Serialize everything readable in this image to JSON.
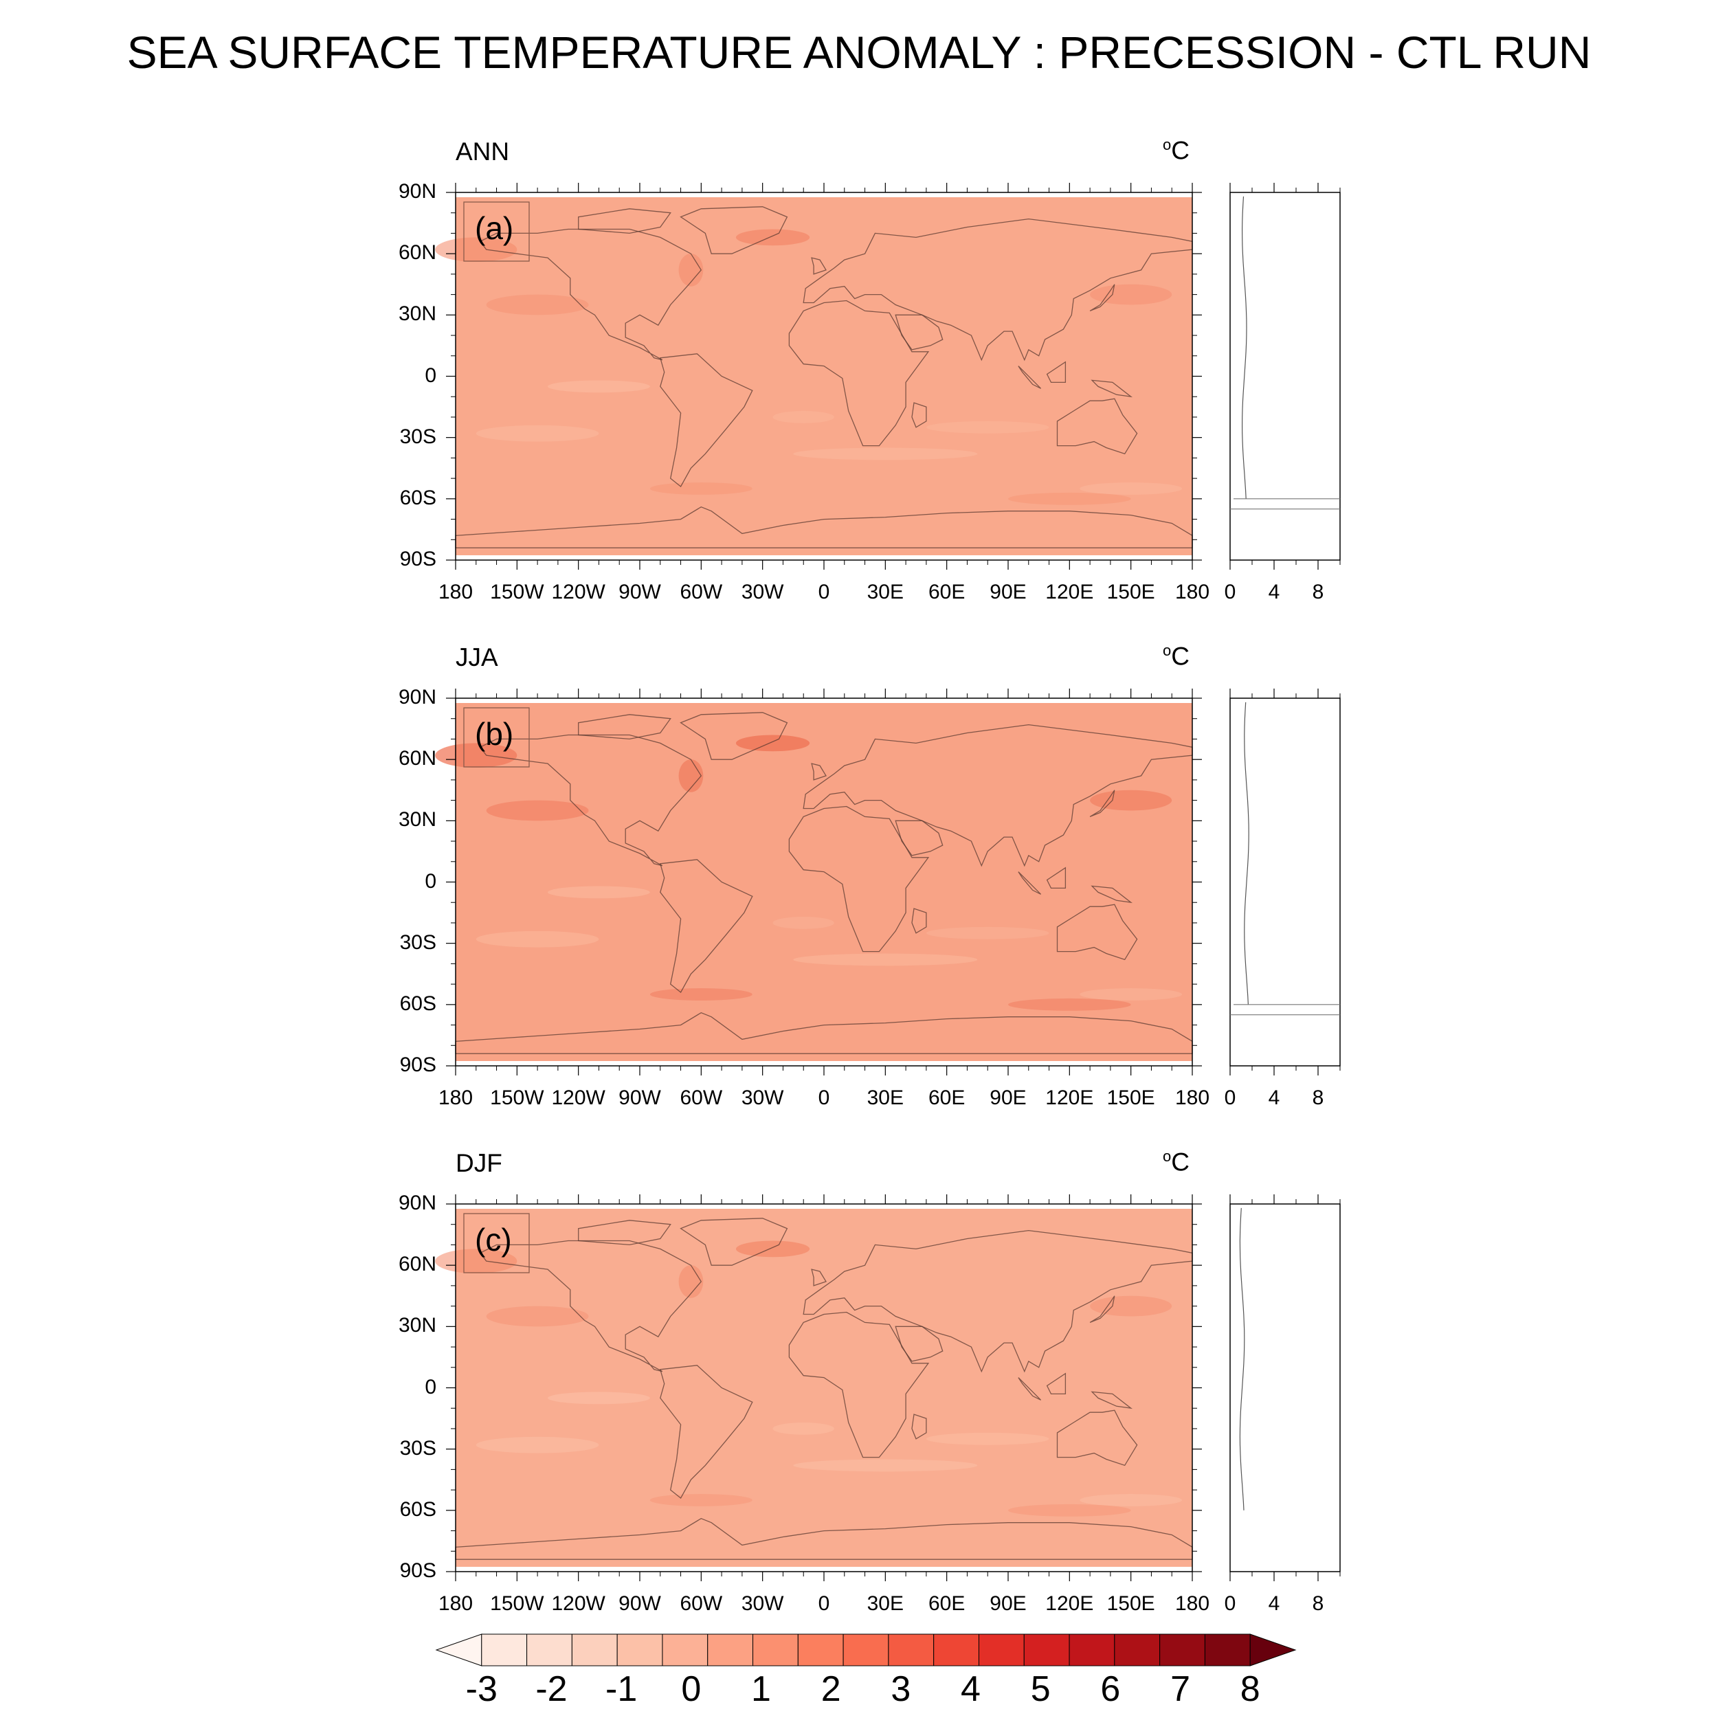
{
  "title": "SEA SURFACE TEMPERATURE ANOMALY : PRECESSION - CTL RUN",
  "unit": "°C",
  "unit_base": "o",
  "unit_letter": "C",
  "lat_ticks": [
    "90N",
    "60N",
    "30N",
    "0",
    "30S",
    "60S",
    "90S"
  ],
  "lon_ticks": [
    "180",
    "150W",
    "120W",
    "90W",
    "60W",
    "30W",
    "0",
    "30E",
    "60E",
    "90E",
    "120E",
    "150E",
    "180"
  ],
  "zonal_ticks": [
    "0",
    "4",
    "8"
  ],
  "panels": [
    {
      "id": "a",
      "season": "ANN",
      "tag": "(a)",
      "base_color": "#f9a98c",
      "accent": "#f48868"
    },
    {
      "id": "b",
      "season": "JJA",
      "tag": "(b)",
      "base_color": "#f8a386",
      "accent": "#f07a5c"
    },
    {
      "id": "c",
      "season": "DJF",
      "tag": "(c)",
      "base_color": "#f9ad91",
      "accent": "#f48868"
    }
  ],
  "colorbar": {
    "labels": [
      "-3",
      "-2",
      "-1",
      "0",
      "1",
      "2",
      "3",
      "4",
      "5",
      "6",
      "7",
      "8"
    ],
    "colors": [
      "#fff5f0",
      "#fee8de",
      "#fdddcf",
      "#fcd0bd",
      "#fcc1a8",
      "#fcb196",
      "#fca183",
      "#fb9070",
      "#fb7f5e",
      "#f96d4f",
      "#f45b42",
      "#ee4634",
      "#e32f27",
      "#d42020",
      "#c1161b",
      "#ad1116",
      "#950b13",
      "#7e0610",
      "#67000d"
    ]
  },
  "chart_data": {
    "type": "heatmap",
    "title": "SEA SURFACE TEMPERATURE ANOMALY : PRECESSION - CTL RUN",
    "panels": [
      "ANN",
      "JJA",
      "DJF"
    ],
    "xlabel": "",
    "ylabel": "",
    "xlim": [
      -180,
      180
    ],
    "ylim": [
      -90,
      90
    ],
    "colorbar_range": [
      -3,
      8
    ],
    "typical_anomaly": {
      "ANN": 1.3,
      "JJA": 1.5,
      "DJF": 1.1
    },
    "zonal_mean_xlim": [
      0,
      10
    ]
  }
}
